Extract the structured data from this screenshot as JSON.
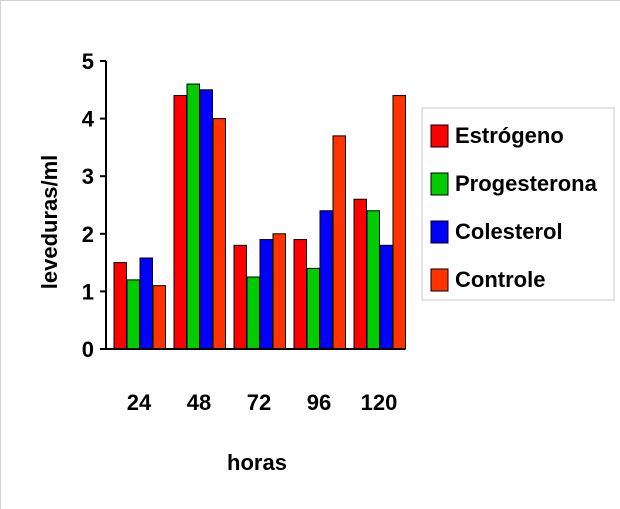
{
  "chart_data": {
    "type": "bar",
    "title": "",
    "xlabel": "horas",
    "ylabel": "leveduras/ml",
    "categories": [
      "24",
      "48",
      "72",
      "96",
      "120"
    ],
    "ylim": [
      0,
      5
    ],
    "yticks": [
      "0",
      "1",
      "2",
      "3",
      "4",
      "5"
    ],
    "grid": false,
    "legend_position": "right",
    "series": [
      {
        "name": "Estrógeno",
        "color": "#ff0000",
        "values": [
          1.5,
          4.4,
          1.8,
          1.9,
          2.6
        ]
      },
      {
        "name": "Progesterona",
        "color": "#00cc00",
        "values": [
          1.2,
          4.6,
          1.25,
          1.4,
          2.4
        ]
      },
      {
        "name": "Colesterol",
        "color": "#0000ff",
        "values": [
          1.58,
          4.5,
          1.9,
          2.4,
          1.8
        ]
      },
      {
        "name": "Controle",
        "color": "#ff3300",
        "values": [
          1.1,
          4.0,
          2.0,
          3.7,
          4.4
        ]
      }
    ]
  }
}
